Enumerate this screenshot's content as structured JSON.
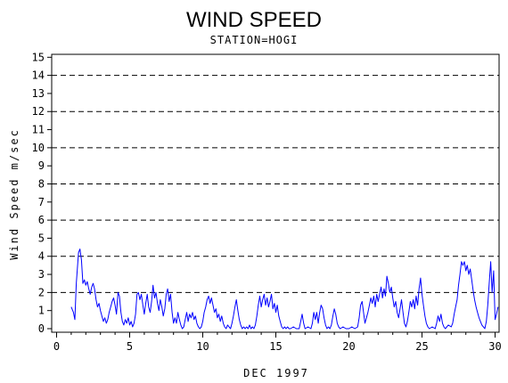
{
  "chart_data": {
    "type": "line",
    "title": "WIND SPEED",
    "subtitle": "STATION=HOGI",
    "xlabel": "DEC 1997",
    "ylabel": "Wind Speed m/sec",
    "xlim": [
      0.5,
      30.2
    ],
    "ylim": [
      0,
      15.5
    ],
    "xticks": [
      0,
      5,
      10,
      15,
      20,
      25,
      30
    ],
    "yticks": [
      0,
      1,
      2,
      3,
      4,
      5,
      6,
      7,
      8,
      9,
      10,
      11,
      12,
      13,
      14,
      15
    ],
    "reference_lines": [
      2,
      4,
      6,
      8,
      10,
      12,
      14
    ],
    "grid": "dashed horizontal lines at even values",
    "series": [
      {
        "color": "#0000ff",
        "points": [
          [
            1.0,
            1.2
          ],
          [
            1.15,
            0.9
          ],
          [
            1.25,
            0.5
          ],
          [
            1.35,
            2.5
          ],
          [
            1.5,
            4.2
          ],
          [
            1.6,
            4.4
          ],
          [
            1.7,
            3.8
          ],
          [
            1.8,
            2.5
          ],
          [
            1.9,
            2.7
          ],
          [
            2.0,
            2.4
          ],
          [
            2.1,
            2.6
          ],
          [
            2.2,
            2.2
          ],
          [
            2.3,
            1.9
          ],
          [
            2.4,
            2.3
          ],
          [
            2.5,
            2.5
          ],
          [
            2.6,
            2.2
          ],
          [
            2.7,
            1.6
          ],
          [
            2.8,
            1.2
          ],
          [
            2.9,
            1.4
          ],
          [
            3.0,
            1.0
          ],
          [
            3.1,
            0.7
          ],
          [
            3.2,
            0.4
          ],
          [
            3.3,
            0.6
          ],
          [
            3.4,
            0.3
          ],
          [
            3.5,
            0.5
          ],
          [
            3.6,
            0.9
          ],
          [
            3.7,
            1.2
          ],
          [
            3.8,
            1.5
          ],
          [
            3.9,
            1.7
          ],
          [
            4.0,
            1.3
          ],
          [
            4.1,
            0.8
          ],
          [
            4.2,
            2.0
          ],
          [
            4.3,
            1.8
          ],
          [
            4.4,
            0.9
          ],
          [
            4.5,
            0.4
          ],
          [
            4.6,
            0.2
          ],
          [
            4.7,
            0.5
          ],
          [
            4.8,
            0.3
          ],
          [
            4.9,
            0.6
          ],
          [
            5.0,
            0.2
          ],
          [
            5.1,
            0.4
          ],
          [
            5.2,
            0.1
          ],
          [
            5.3,
            0.3
          ],
          [
            5.4,
            0.8
          ],
          [
            5.5,
            1.9
          ],
          [
            5.6,
            2.0
          ],
          [
            5.7,
            1.6
          ],
          [
            5.8,
            1.9
          ],
          [
            5.9,
            1.3
          ],
          [
            6.0,
            0.8
          ],
          [
            6.1,
            1.4
          ],
          [
            6.2,
            1.9
          ],
          [
            6.3,
            1.2
          ],
          [
            6.4,
            0.9
          ],
          [
            6.5,
            1.5
          ],
          [
            6.6,
            2.4
          ],
          [
            6.7,
            1.7
          ],
          [
            6.8,
            2.0
          ],
          [
            6.9,
            1.4
          ],
          [
            7.0,
            1.0
          ],
          [
            7.1,
            1.6
          ],
          [
            7.2,
            1.2
          ],
          [
            7.3,
            0.7
          ],
          [
            7.4,
            1.1
          ],
          [
            7.5,
            1.9
          ],
          [
            7.6,
            2.2
          ],
          [
            7.7,
            1.5
          ],
          [
            7.8,
            1.9
          ],
          [
            7.9,
            0.9
          ],
          [
            8.0,
            0.3
          ],
          [
            8.1,
            0.6
          ],
          [
            8.2,
            0.3
          ],
          [
            8.3,
            0.9
          ],
          [
            8.4,
            0.5
          ],
          [
            8.5,
            0.2
          ],
          [
            8.6,
            0.0
          ],
          [
            8.7,
            0.1
          ],
          [
            8.8,
            0.5
          ],
          [
            8.9,
            0.9
          ],
          [
            9.0,
            0.4
          ],
          [
            9.1,
            0.8
          ],
          [
            9.2,
            0.6
          ],
          [
            9.3,
            0.9
          ],
          [
            9.4,
            0.5
          ],
          [
            9.5,
            0.7
          ],
          [
            9.6,
            0.3
          ],
          [
            9.7,
            0.1
          ],
          [
            9.8,
            0.0
          ],
          [
            9.9,
            0.1
          ],
          [
            10.0,
            0.4
          ],
          [
            10.1,
            0.9
          ],
          [
            10.2,
            1.2
          ],
          [
            10.3,
            1.6
          ],
          [
            10.4,
            1.8
          ],
          [
            10.5,
            1.4
          ],
          [
            10.6,
            1.7
          ],
          [
            10.7,
            1.3
          ],
          [
            10.8,
            0.9
          ],
          [
            10.9,
            1.1
          ],
          [
            11.0,
            0.6
          ],
          [
            11.1,
            0.8
          ],
          [
            11.2,
            0.4
          ],
          [
            11.3,
            0.7
          ],
          [
            11.4,
            0.3
          ],
          [
            11.5,
            0.1
          ],
          [
            11.6,
            0.0
          ],
          [
            11.7,
            0.2
          ],
          [
            11.8,
            0.1
          ],
          [
            11.9,
            0.0
          ],
          [
            12.0,
            0.3
          ],
          [
            12.1,
            0.7
          ],
          [
            12.2,
            1.2
          ],
          [
            12.3,
            1.6
          ],
          [
            12.4,
            1.0
          ],
          [
            12.5,
            0.5
          ],
          [
            12.6,
            0.2
          ],
          [
            12.7,
            0.0
          ],
          [
            12.8,
            0.1
          ],
          [
            12.9,
            0.0
          ],
          [
            13.0,
            0.1
          ],
          [
            13.1,
            0.0
          ],
          [
            13.2,
            0.2
          ],
          [
            13.3,
            0.0
          ],
          [
            13.4,
            0.1
          ],
          [
            13.5,
            0.0
          ],
          [
            13.6,
            0.2
          ],
          [
            13.7,
            0.7
          ],
          [
            13.8,
            1.3
          ],
          [
            13.9,
            1.8
          ],
          [
            14.0,
            1.2
          ],
          [
            14.1,
            1.6
          ],
          [
            14.2,
            1.9
          ],
          [
            14.3,
            1.3
          ],
          [
            14.4,
            1.7
          ],
          [
            14.5,
            1.2
          ],
          [
            14.6,
            1.5
          ],
          [
            14.7,
            1.9
          ],
          [
            14.8,
            1.1
          ],
          [
            14.9,
            1.4
          ],
          [
            15.0,
            0.9
          ],
          [
            15.1,
            1.3
          ],
          [
            15.2,
            0.7
          ],
          [
            15.3,
            0.4
          ],
          [
            15.4,
            0.1
          ],
          [
            15.5,
            0.0
          ],
          [
            15.6,
            0.1
          ],
          [
            15.7,
            0.0
          ],
          [
            15.8,
            0.1
          ],
          [
            15.9,
            0.0
          ],
          [
            16.0,
            0.0
          ],
          [
            16.2,
            0.1
          ],
          [
            16.4,
            0.0
          ],
          [
            16.6,
            0.0
          ],
          [
            16.7,
            0.4
          ],
          [
            16.8,
            0.8
          ],
          [
            16.9,
            0.3
          ],
          [
            17.0,
            0.0
          ],
          [
            17.2,
            0.1
          ],
          [
            17.4,
            0.0
          ],
          [
            17.5,
            0.3
          ],
          [
            17.6,
            0.9
          ],
          [
            17.7,
            0.5
          ],
          [
            17.8,
            0.9
          ],
          [
            17.9,
            0.3
          ],
          [
            18.0,
            0.9
          ],
          [
            18.1,
            1.3
          ],
          [
            18.2,
            1.1
          ],
          [
            18.3,
            0.6
          ],
          [
            18.4,
            0.2
          ],
          [
            18.5,
            0.0
          ],
          [
            18.6,
            0.1
          ],
          [
            18.7,
            0.0
          ],
          [
            18.8,
            0.2
          ],
          [
            18.9,
            0.7
          ],
          [
            19.0,
            1.1
          ],
          [
            19.1,
            0.8
          ],
          [
            19.2,
            0.3
          ],
          [
            19.3,
            0.1
          ],
          [
            19.4,
            0.0
          ],
          [
            19.6,
            0.1
          ],
          [
            19.8,
            0.0
          ],
          [
            20.0,
            0.0
          ],
          [
            20.2,
            0.1
          ],
          [
            20.4,
            0.0
          ],
          [
            20.6,
            0.1
          ],
          [
            20.7,
            0.6
          ],
          [
            20.8,
            1.3
          ],
          [
            20.9,
            1.5
          ],
          [
            21.0,
            0.9
          ],
          [
            21.1,
            0.3
          ],
          [
            21.2,
            0.6
          ],
          [
            21.3,
            0.9
          ],
          [
            21.4,
            1.3
          ],
          [
            21.5,
            1.7
          ],
          [
            21.6,
            1.4
          ],
          [
            21.7,
            1.8
          ],
          [
            21.8,
            1.2
          ],
          [
            21.9,
            1.9
          ],
          [
            22.0,
            1.5
          ],
          [
            22.1,
            1.9
          ],
          [
            22.2,
            2.3
          ],
          [
            22.3,
            1.7
          ],
          [
            22.4,
            2.2
          ],
          [
            22.5,
            1.8
          ],
          [
            22.6,
            2.9
          ],
          [
            22.7,
            2.5
          ],
          [
            22.8,
            2.0
          ],
          [
            22.9,
            2.3
          ],
          [
            23.0,
            1.7
          ],
          [
            23.1,
            1.2
          ],
          [
            23.2,
            1.5
          ],
          [
            23.3,
            0.9
          ],
          [
            23.4,
            0.6
          ],
          [
            23.5,
            1.1
          ],
          [
            23.6,
            1.6
          ],
          [
            23.7,
            0.9
          ],
          [
            23.8,
            0.3
          ],
          [
            23.9,
            0.1
          ],
          [
            24.0,
            0.4
          ],
          [
            24.1,
            0.9
          ],
          [
            24.2,
            1.5
          ],
          [
            24.3,
            1.2
          ],
          [
            24.4,
            1.6
          ],
          [
            24.5,
            1.1
          ],
          [
            24.6,
            1.8
          ],
          [
            24.7,
            1.3
          ],
          [
            24.8,
            2.2
          ],
          [
            24.9,
            2.8
          ],
          [
            25.0,
            1.9
          ],
          [
            25.1,
            1.3
          ],
          [
            25.2,
            0.7
          ],
          [
            25.3,
            0.3
          ],
          [
            25.4,
            0.1
          ],
          [
            25.5,
            0.0
          ],
          [
            25.7,
            0.1
          ],
          [
            25.9,
            0.0
          ],
          [
            26.0,
            0.3
          ],
          [
            26.1,
            0.7
          ],
          [
            26.2,
            0.4
          ],
          [
            26.3,
            0.8
          ],
          [
            26.4,
            0.3
          ],
          [
            26.5,
            0.1
          ],
          [
            26.6,
            0.0
          ],
          [
            26.8,
            0.2
          ],
          [
            27.0,
            0.1
          ],
          [
            27.1,
            0.3
          ],
          [
            27.2,
            0.8
          ],
          [
            27.3,
            1.2
          ],
          [
            27.4,
            1.6
          ],
          [
            27.5,
            2.4
          ],
          [
            27.6,
            3.0
          ],
          [
            27.7,
            3.7
          ],
          [
            27.8,
            3.5
          ],
          [
            27.9,
            3.7
          ],
          [
            28.0,
            3.2
          ],
          [
            28.1,
            3.5
          ],
          [
            28.2,
            3.0
          ],
          [
            28.3,
            3.3
          ],
          [
            28.4,
            2.7
          ],
          [
            28.5,
            2.1
          ],
          [
            28.6,
            1.6
          ],
          [
            28.7,
            1.2
          ],
          [
            28.8,
            0.9
          ],
          [
            28.9,
            0.6
          ],
          [
            29.0,
            0.4
          ],
          [
            29.1,
            0.2
          ],
          [
            29.2,
            0.1
          ],
          [
            29.3,
            0.0
          ],
          [
            29.4,
            0.4
          ],
          [
            29.5,
            1.3
          ],
          [
            29.6,
            2.5
          ],
          [
            29.7,
            3.7
          ],
          [
            29.8,
            2.0
          ],
          [
            29.9,
            3.2
          ],
          [
            30.0,
            0.5
          ],
          [
            30.1,
            0.8
          ],
          [
            30.2,
            1.2
          ]
        ]
      }
    ]
  }
}
